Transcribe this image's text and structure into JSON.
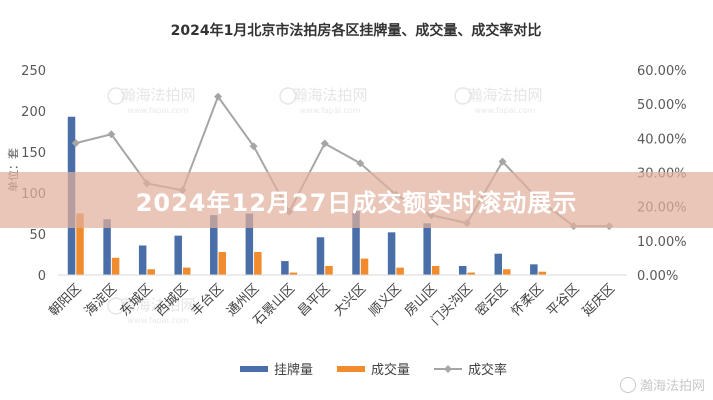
{
  "chart_data": {
    "type": "bar",
    "title": "2024年1月北京市法拍房各区挂牌量、成交量、成交率对比",
    "ylabel": "单位：套",
    "ylim": [
      0,
      250
    ],
    "y_ticks": [
      "0",
      "50",
      "100",
      "150",
      "200",
      "250"
    ],
    "y2lim": [
      0,
      0.6
    ],
    "y2_ticks": [
      "0.00%",
      "10.00%",
      "20.00%",
      "30.00%",
      "40.00%",
      "50.00%",
      "60.00%"
    ],
    "categories": [
      "朝阳区",
      "海淀区",
      "东城区",
      "西城区",
      "丰台区",
      "通州区",
      "石景山区",
      "昌平区",
      "大兴区",
      "顺义区",
      "房山区",
      "门头沟区",
      "密云区",
      "怀柔区",
      "平谷区",
      "延庆区"
    ],
    "series": [
      {
        "name": "挂牌量",
        "kind": "bar",
        "axis": "left",
        "color": "#4a6fa8",
        "values": [
          193,
          68,
          36,
          48,
          73,
          75,
          17,
          46,
          78,
          52,
          63,
          11,
          26,
          13,
          0,
          0
        ]
      },
      {
        "name": "成交量",
        "kind": "bar",
        "axis": "left",
        "color": "#f08c2d",
        "values": [
          75,
          21,
          7,
          9,
          28,
          28,
          3,
          11,
          20,
          9,
          11,
          3,
          7,
          4,
          0,
          0
        ]
      },
      {
        "name": "成交率",
        "kind": "line",
        "axis": "right",
        "color": "#a6a6a6",
        "values": [
          0.386,
          0.412,
          0.268,
          0.248,
          0.522,
          0.377,
          0.185,
          0.385,
          0.327,
          0.235,
          0.175,
          0.152,
          0.332,
          0.222,
          0.143,
          0.143
        ]
      }
    ],
    "legend_position": "bottom",
    "grid": false
  },
  "overlay": {
    "banner": "2024年12月27日成交额实时滚动展示",
    "watermarks": [
      "瀚海法拍网",
      "瀚海法拍网",
      "瀚海法拍网",
      "瀚海法拍网"
    ],
    "watermark_url": "www.fapai.com",
    "corner_watermark": "瀚海法拍网"
  }
}
